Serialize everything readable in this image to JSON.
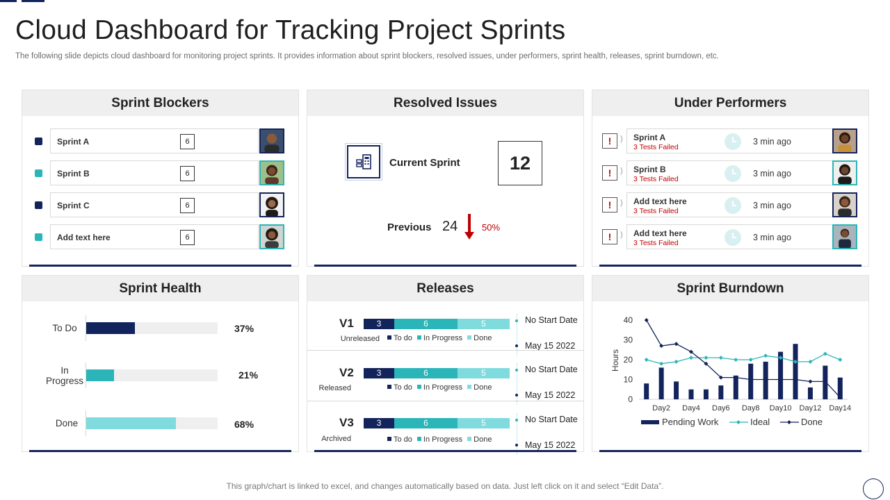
{
  "title": "Cloud Dashboard for Tracking Project Sprints",
  "subtitle": "The following slide depicts cloud dashboard for monitoring project sprints. It provides information about sprint blockers, resolved issues, under performers, sprint health, releases, sprint burndown, etc.",
  "colors": {
    "navy": "#13235b",
    "teal": "#2bb5b8",
    "light_teal": "#7fdbdd",
    "red": "#c00000"
  },
  "sprint_blockers": {
    "title": "Sprint Blockers",
    "items": [
      {
        "label": "Sprint A",
        "count": "6",
        "bullet": "navy"
      },
      {
        "label": "Sprint B",
        "count": "6",
        "bullet": "teal"
      },
      {
        "label": "Sprint C",
        "count": "6",
        "bullet": "navy"
      },
      {
        "label": "Add  text here",
        "count": "6",
        "bullet": "teal"
      }
    ]
  },
  "resolved_issues": {
    "title": "Resolved Issues",
    "current_label": "Current Sprint",
    "current_value": "12",
    "previous_label": "Previous",
    "previous_value": "24",
    "change": "50%"
  },
  "under_performers": {
    "title": "Under Performers",
    "items": [
      {
        "name": "Sprint A",
        "status": "3 Tests Failed",
        "time": "3 min ago"
      },
      {
        "name": "Sprint B",
        "status": "3 Tests Failed",
        "time": "3 min ago"
      },
      {
        "name": "Add  text here",
        "status": "3 Tests Failed",
        "time": "3 min ago"
      },
      {
        "name": "Add  text here",
        "status": "3 Tests Failed",
        "time": "3 min ago"
      }
    ]
  },
  "sprint_health": {
    "title": "Sprint Health",
    "items": [
      {
        "label_lines": [
          "To Do"
        ],
        "value": 37,
        "pct_label": "37%"
      },
      {
        "label_lines": [
          "In",
          "Progress"
        ],
        "value": 21,
        "pct_label": "21%"
      },
      {
        "label_lines": [
          "Done"
        ],
        "value": 68,
        "pct_label": "68%"
      }
    ]
  },
  "releases": {
    "title": "Releases",
    "legend": [
      "To do",
      "In Progress",
      "Done"
    ],
    "items": [
      {
        "version": "V1",
        "state": "Unreleased",
        "todo": "3",
        "inprogress": "6",
        "done": "5",
        "start": "No Start Date",
        "end": "May  15 2022"
      },
      {
        "version": "V2",
        "state": "Released",
        "todo": "3",
        "inprogress": "6",
        "done": "5",
        "start": "No Start Date",
        "end": "May  15 2022"
      },
      {
        "version": "V3",
        "state": "Archived",
        "todo": "3",
        "inprogress": "6",
        "done": "5",
        "start": "No Start Date",
        "end": "May  15 2022"
      }
    ]
  },
  "sprint_burndown": {
    "title": "Sprint Burndown",
    "chart_data": {
      "type": "bar",
      "ylabel": "Hours",
      "ylim": [
        0,
        40
      ],
      "yticks": [
        0,
        10,
        20,
        30,
        40
      ],
      "x": [
        1,
        2,
        3,
        4,
        5,
        6,
        7,
        8,
        9,
        10,
        11,
        12,
        13,
        14
      ],
      "xtick_labels": [
        "Day2",
        "Day4",
        "Day6",
        "Day8",
        "Day10",
        "Day12",
        "Day14"
      ],
      "series": [
        {
          "name": "Pending Work",
          "kind": "bar",
          "values": [
            8,
            16,
            9,
            5,
            5,
            7,
            12,
            18,
            19,
            24,
            28,
            6,
            17,
            11
          ]
        },
        {
          "name": "Ideal",
          "kind": "line",
          "values": [
            20,
            18,
            19,
            21,
            21,
            21,
            20,
            20,
            22,
            21,
            19,
            19,
            23,
            20
          ]
        },
        {
          "name": "Done",
          "kind": "line",
          "values": [
            40,
            27,
            28,
            24,
            18,
            11,
            11,
            10,
            10,
            10,
            10,
            9,
            9,
            1
          ]
        }
      ],
      "legend": [
        "Pending Work",
        "Ideal",
        "Done"
      ]
    }
  },
  "footnote": "This graph/chart is linked to excel,  and changes automatically based on data. Just left click on it and select “Edit Data”."
}
